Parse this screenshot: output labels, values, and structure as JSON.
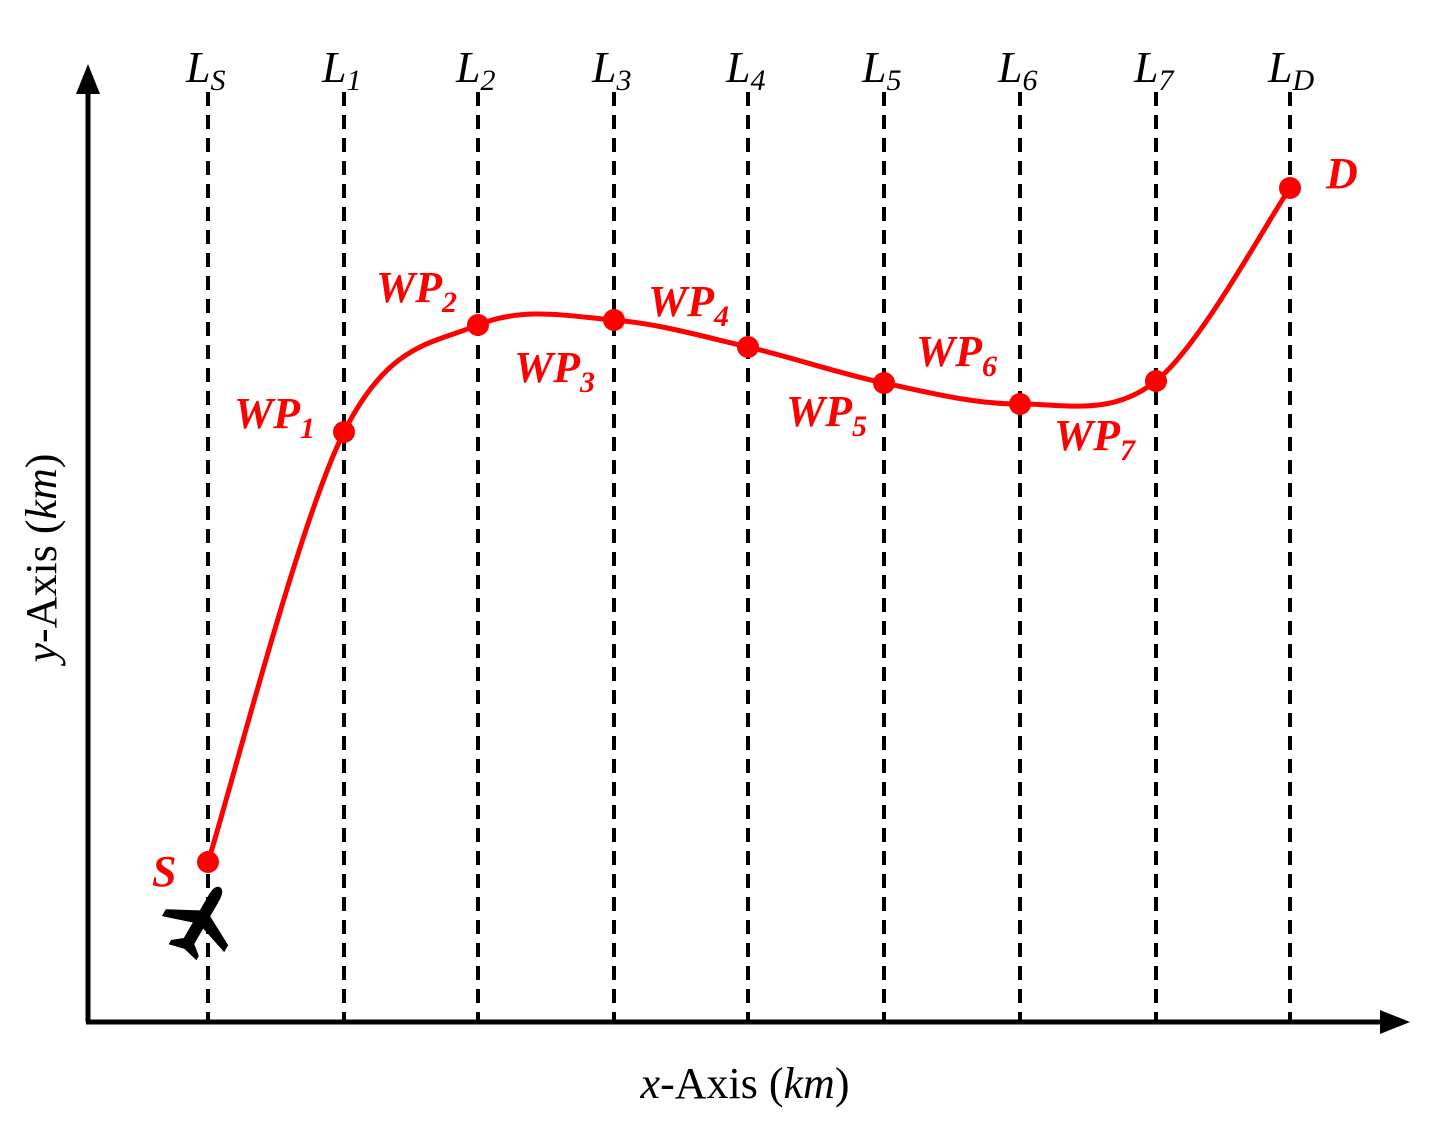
{
  "colors": {
    "path": "#ff0000",
    "axes": "#000000",
    "guides": "#000000",
    "background": "#ffffff"
  },
  "axes": {
    "x_var": "x",
    "x_rest": "-Axis (",
    "x_unit": "km",
    "x_close": ")",
    "y_var": "y",
    "y_rest": "-Axis (",
    "y_unit": "km",
    "y_close": ")"
  },
  "guide_lines": [
    {
      "name": "L",
      "sub": "S"
    },
    {
      "name": "L",
      "sub": "1"
    },
    {
      "name": "L",
      "sub": "2"
    },
    {
      "name": "L",
      "sub": "3"
    },
    {
      "name": "L",
      "sub": "4"
    },
    {
      "name": "L",
      "sub": "5"
    },
    {
      "name": "L",
      "sub": "6"
    },
    {
      "name": "L",
      "sub": "7"
    },
    {
      "name": "L",
      "sub": "D"
    }
  ],
  "points": [
    {
      "name": "S",
      "sub": ""
    },
    {
      "name": "WP",
      "sub": "1"
    },
    {
      "name": "WP",
      "sub": "2"
    },
    {
      "name": "WP",
      "sub": "3"
    },
    {
      "name": "WP",
      "sub": "4"
    },
    {
      "name": "WP",
      "sub": "5"
    },
    {
      "name": "WP",
      "sub": "6"
    },
    {
      "name": "WP",
      "sub": "7"
    },
    {
      "name": "D",
      "sub": ""
    }
  ],
  "icons": {
    "start": "airplane-icon"
  }
}
